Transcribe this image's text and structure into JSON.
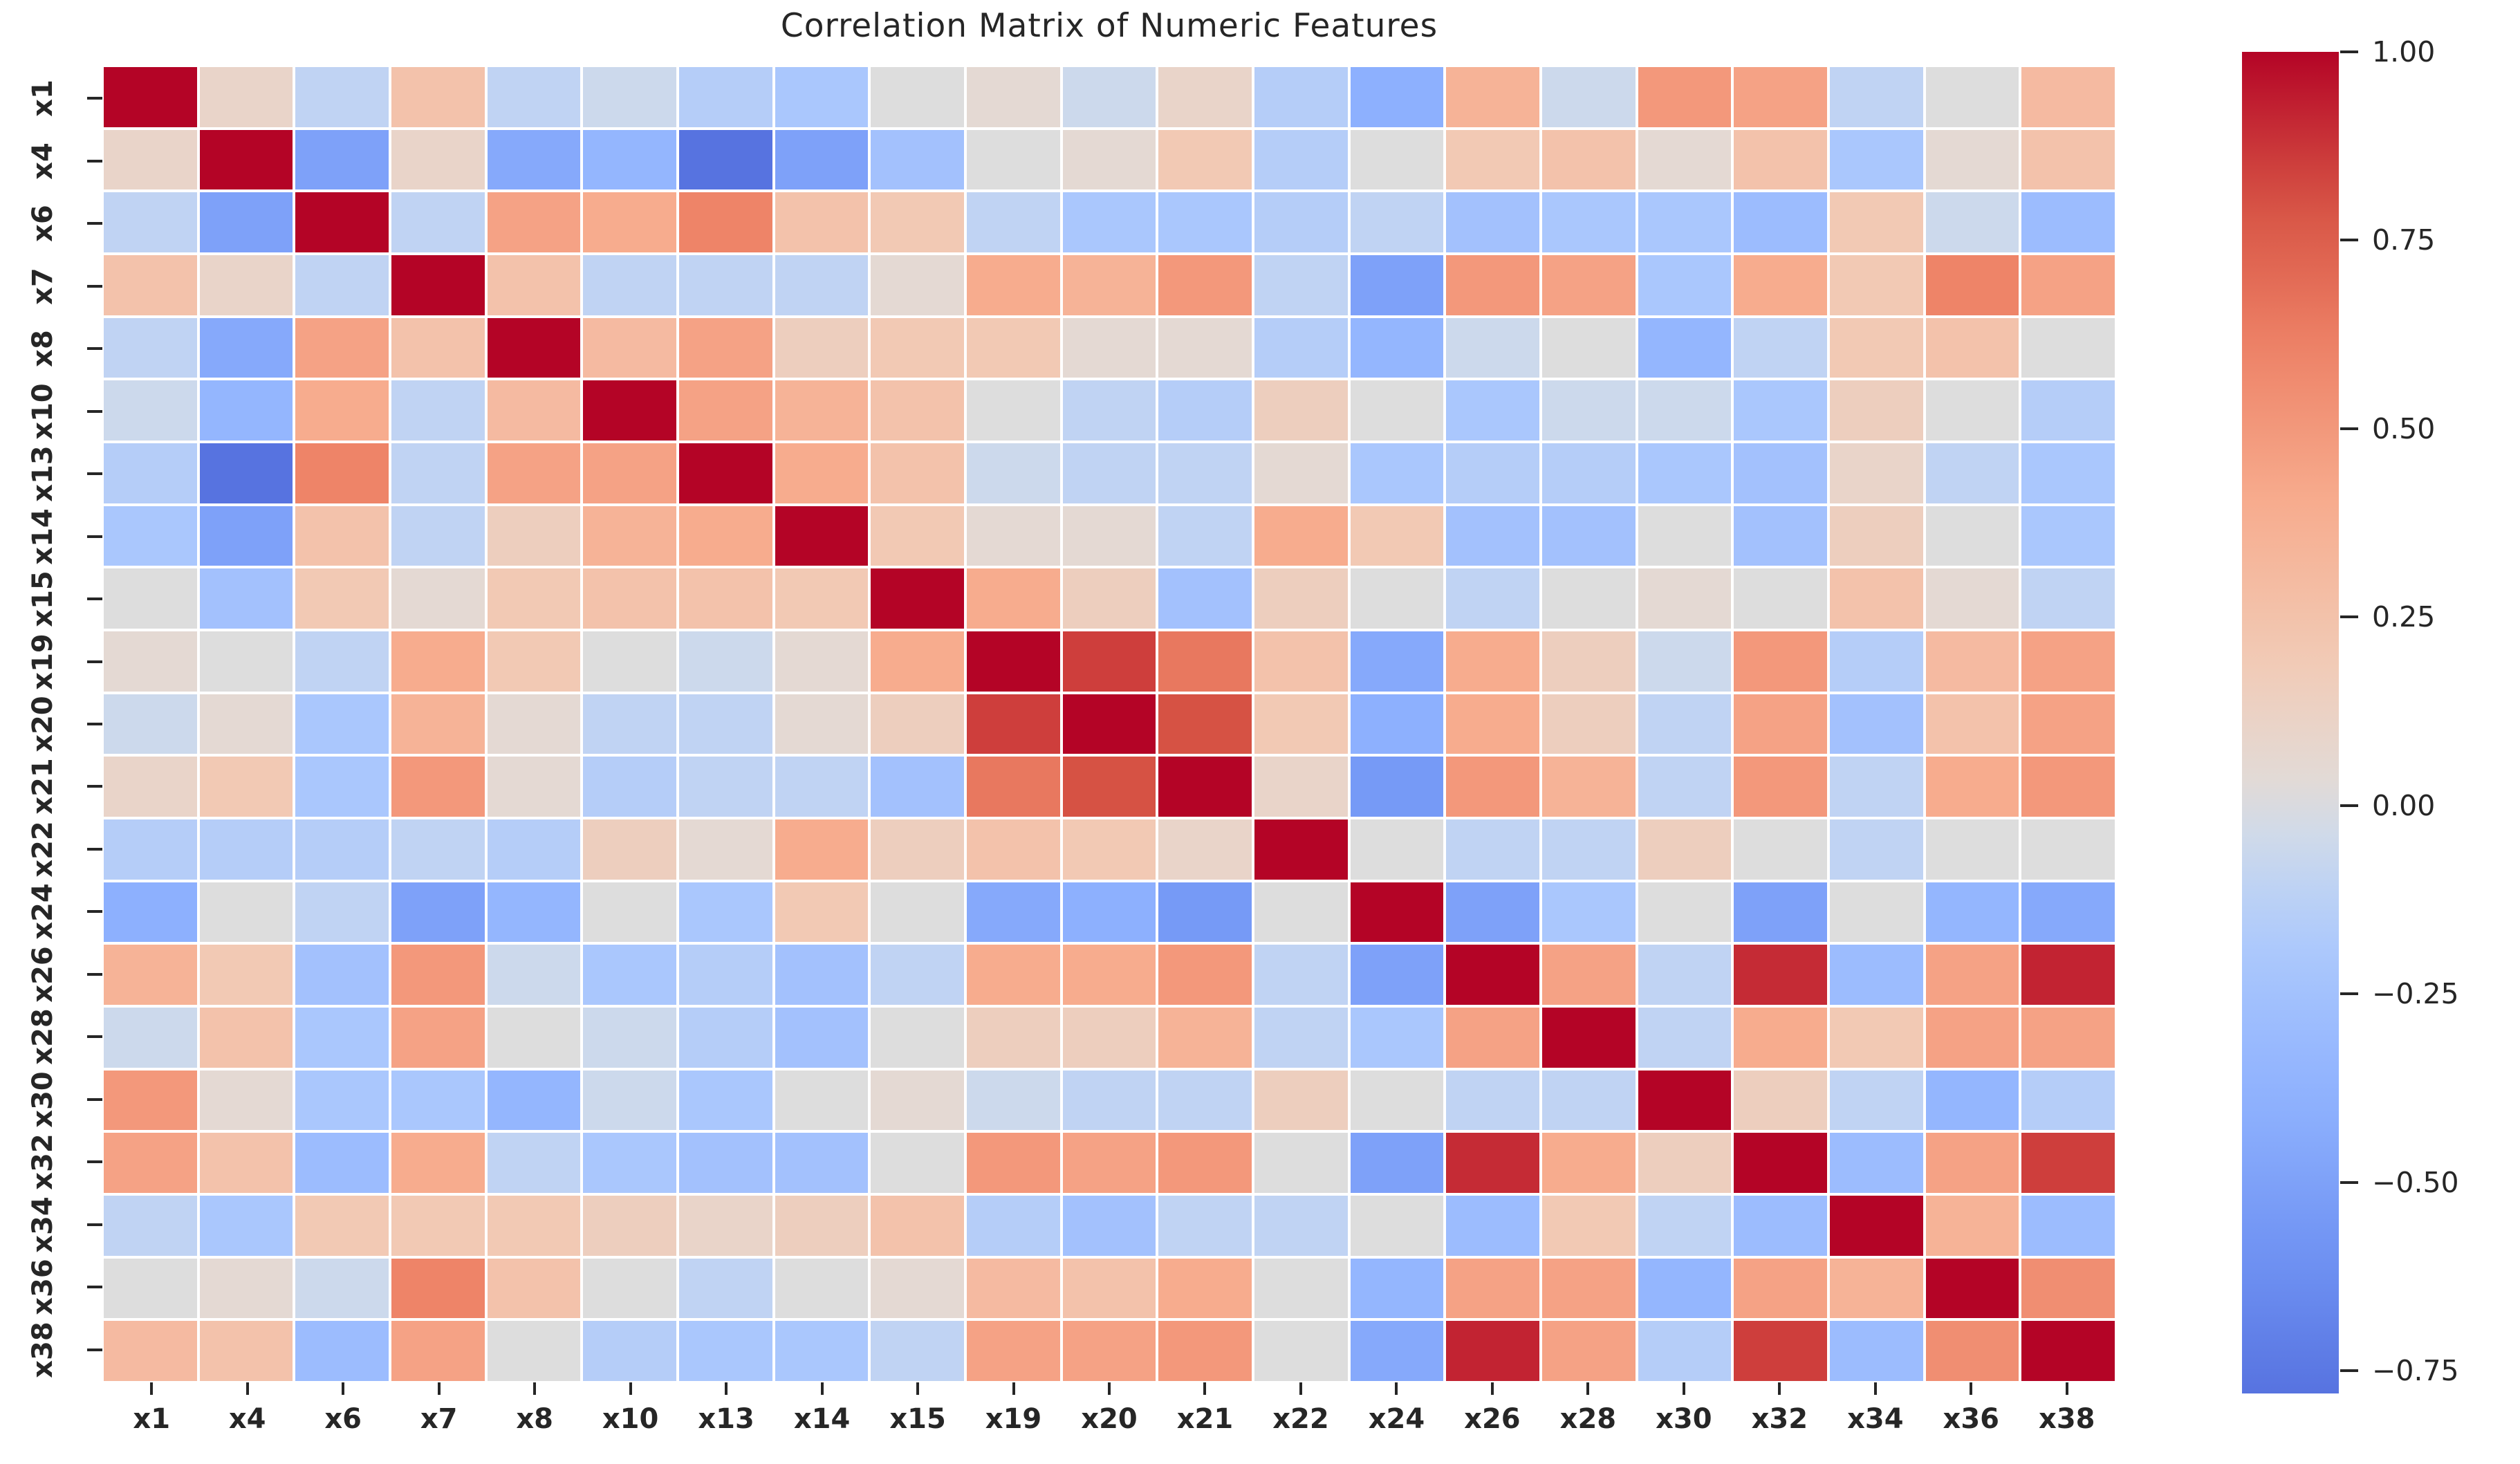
{
  "chart_data": {
    "type": "heatmap",
    "title": "Correlation Matrix of Numeric Features",
    "features": [
      "x1",
      "x4",
      "x6",
      "x7",
      "x8",
      "x10",
      "x13",
      "x14",
      "x15",
      "x19",
      "x20",
      "x21",
      "x22",
      "x24",
      "x26",
      "x28",
      "x30",
      "x32",
      "x34",
      "x36",
      "x38"
    ],
    "matrix": [
      [
        1.0,
        0.1,
        -0.1,
        0.25,
        -0.1,
        -0.05,
        -0.15,
        -0.2,
        0.0,
        0.05,
        -0.05,
        0.1,
        -0.15,
        -0.4,
        0.35,
        -0.05,
        0.5,
        0.45,
        -0.1,
        0.0,
        0.3
      ],
      [
        0.1,
        1.0,
        -0.5,
        0.1,
        -0.45,
        -0.35,
        -0.78,
        -0.5,
        -0.25,
        0.0,
        0.05,
        0.2,
        -0.15,
        0.0,
        0.2,
        0.25,
        0.05,
        0.25,
        -0.2,
        0.05,
        0.25
      ],
      [
        -0.1,
        -0.5,
        1.0,
        -0.1,
        0.45,
        0.4,
        0.6,
        0.25,
        0.2,
        -0.1,
        -0.2,
        -0.2,
        -0.15,
        -0.1,
        -0.25,
        -0.2,
        -0.2,
        -0.3,
        0.2,
        -0.05,
        -0.3
      ],
      [
        0.25,
        0.1,
        -0.1,
        1.0,
        0.25,
        -0.1,
        -0.1,
        -0.1,
        0.05,
        0.4,
        0.35,
        0.5,
        -0.1,
        -0.5,
        0.5,
        0.45,
        -0.2,
        0.4,
        0.2,
        0.6,
        0.45
      ],
      [
        -0.1,
        -0.45,
        0.45,
        0.25,
        1.0,
        0.3,
        0.45,
        0.15,
        0.2,
        0.2,
        0.05,
        0.05,
        -0.15,
        -0.35,
        -0.05,
        0.0,
        -0.35,
        -0.1,
        0.2,
        0.25,
        0.0
      ],
      [
        -0.05,
        -0.35,
        0.4,
        -0.1,
        0.3,
        1.0,
        0.45,
        0.35,
        0.25,
        0.0,
        -0.1,
        -0.15,
        0.15,
        0.0,
        -0.2,
        -0.05,
        -0.05,
        -0.2,
        0.15,
        0.0,
        -0.15
      ],
      [
        -0.15,
        -0.78,
        0.6,
        -0.1,
        0.45,
        0.45,
        1.0,
        0.4,
        0.25,
        -0.05,
        -0.1,
        -0.1,
        0.05,
        -0.2,
        -0.15,
        -0.15,
        -0.2,
        -0.25,
        0.1,
        -0.1,
        -0.2
      ],
      [
        -0.2,
        -0.5,
        0.25,
        -0.1,
        0.15,
        0.35,
        0.4,
        1.0,
        0.2,
        0.05,
        0.05,
        -0.1,
        0.4,
        0.2,
        -0.25,
        -0.25,
        0.0,
        -0.25,
        0.15,
        0.0,
        -0.2
      ],
      [
        0.0,
        -0.25,
        0.2,
        0.05,
        0.2,
        0.25,
        0.25,
        0.2,
        1.0,
        0.4,
        0.15,
        -0.25,
        0.15,
        0.0,
        -0.1,
        0.0,
        0.05,
        0.0,
        0.25,
        0.05,
        -0.1
      ],
      [
        0.05,
        0.0,
        -0.1,
        0.4,
        0.2,
        0.0,
        -0.05,
        0.05,
        0.4,
        1.0,
        0.85,
        0.65,
        0.25,
        -0.45,
        0.4,
        0.15,
        -0.05,
        0.5,
        -0.15,
        0.3,
        0.45
      ],
      [
        -0.05,
        0.05,
        -0.2,
        0.35,
        0.05,
        -0.1,
        -0.1,
        0.05,
        0.15,
        0.85,
        1.0,
        0.8,
        0.2,
        -0.4,
        0.4,
        0.15,
        -0.1,
        0.45,
        -0.25,
        0.25,
        0.45
      ],
      [
        0.1,
        0.2,
        -0.2,
        0.5,
        0.05,
        -0.15,
        -0.1,
        -0.1,
        -0.25,
        0.65,
        0.8,
        1.0,
        0.1,
        -0.55,
        0.5,
        0.35,
        -0.1,
        0.5,
        -0.1,
        0.4,
        0.5
      ],
      [
        -0.15,
        -0.15,
        -0.15,
        -0.1,
        -0.15,
        0.15,
        0.05,
        0.4,
        0.15,
        0.25,
        0.2,
        0.1,
        1.0,
        0.0,
        -0.1,
        -0.1,
        0.15,
        0.0,
        -0.1,
        0.0,
        0.0
      ],
      [
        -0.4,
        0.0,
        -0.1,
        -0.5,
        -0.35,
        0.0,
        -0.2,
        0.2,
        0.0,
        -0.45,
        -0.4,
        -0.55,
        0.0,
        1.0,
        -0.5,
        -0.2,
        0.0,
        -0.5,
        0.0,
        -0.35,
        -0.45
      ],
      [
        0.35,
        0.2,
        -0.25,
        0.5,
        -0.05,
        -0.2,
        -0.15,
        -0.25,
        -0.1,
        0.4,
        0.4,
        0.5,
        -0.1,
        -0.5,
        1.0,
        0.45,
        -0.1,
        0.9,
        -0.3,
        0.45,
        0.92
      ],
      [
        -0.05,
        0.25,
        -0.2,
        0.45,
        0.0,
        -0.05,
        -0.15,
        -0.25,
        0.0,
        0.15,
        0.15,
        0.35,
        -0.1,
        -0.2,
        0.45,
        1.0,
        -0.1,
        0.4,
        0.2,
        0.45,
        0.45
      ],
      [
        0.5,
        0.05,
        -0.2,
        -0.2,
        -0.35,
        -0.05,
        -0.2,
        0.0,
        0.05,
        -0.05,
        -0.1,
        -0.1,
        0.15,
        0.0,
        -0.1,
        -0.1,
        1.0,
        0.15,
        -0.1,
        -0.35,
        -0.15
      ],
      [
        0.45,
        0.25,
        -0.3,
        0.4,
        -0.1,
        -0.2,
        -0.25,
        -0.25,
        0.0,
        0.5,
        0.45,
        0.5,
        0.0,
        -0.5,
        0.9,
        0.4,
        0.15,
        1.0,
        -0.3,
        0.45,
        0.85
      ],
      [
        -0.1,
        -0.2,
        0.2,
        0.2,
        0.2,
        0.15,
        0.1,
        0.15,
        0.25,
        -0.15,
        -0.25,
        -0.1,
        -0.1,
        0.0,
        -0.3,
        0.2,
        -0.1,
        -0.3,
        1.0,
        0.35,
        -0.3
      ],
      [
        0.0,
        0.05,
        -0.05,
        0.6,
        0.25,
        0.0,
        -0.1,
        0.0,
        0.05,
        0.3,
        0.25,
        0.4,
        0.0,
        -0.35,
        0.45,
        0.45,
        -0.35,
        0.45,
        0.35,
        1.0,
        0.55
      ],
      [
        0.3,
        0.25,
        -0.3,
        0.45,
        0.0,
        -0.15,
        -0.2,
        -0.2,
        -0.1,
        0.45,
        0.45,
        0.5,
        0.0,
        -0.45,
        0.92,
        0.45,
        -0.15,
        0.85,
        -0.3,
        0.55,
        1.0
      ]
    ],
    "colormap": "coolwarm",
    "center": 0.0,
    "vmin": -0.78,
    "vmax": 1.0,
    "colorbar_ticks": [
      1.0,
      0.75,
      0.5,
      0.25,
      0.0,
      -0.25,
      -0.5,
      -0.75
    ],
    "colorbar_tick_labels": [
      "1.00",
      "0.75",
      "0.50",
      "0.25",
      "0.00",
      "−0.25",
      "−0.50",
      "−0.75"
    ],
    "colormap_stops": [
      [
        0.0,
        "#3b4cc0"
      ],
      [
        0.1,
        "#5470de"
      ],
      [
        0.2,
        "#6f92f3"
      ],
      [
        0.3,
        "#8db0fe"
      ],
      [
        0.4,
        "#aac7fd"
      ],
      [
        0.47,
        "#c9d8ef"
      ],
      [
        0.5,
        "#dddddd"
      ],
      [
        0.53,
        "#e5d8d1"
      ],
      [
        0.6,
        "#f2c9b4"
      ],
      [
        0.7,
        "#f7ac8e"
      ],
      [
        0.8,
        "#ee8468"
      ],
      [
        0.9,
        "#d65244"
      ],
      [
        1.0,
        "#b40426"
      ]
    ],
    "cell_line_color": "#ffffff",
    "text_color": "#262626",
    "layout_hints": {
      "colorbar_position": "right",
      "x_tick_rotation": 0,
      "y_tick_rotation": 90,
      "grid": "off"
    }
  }
}
